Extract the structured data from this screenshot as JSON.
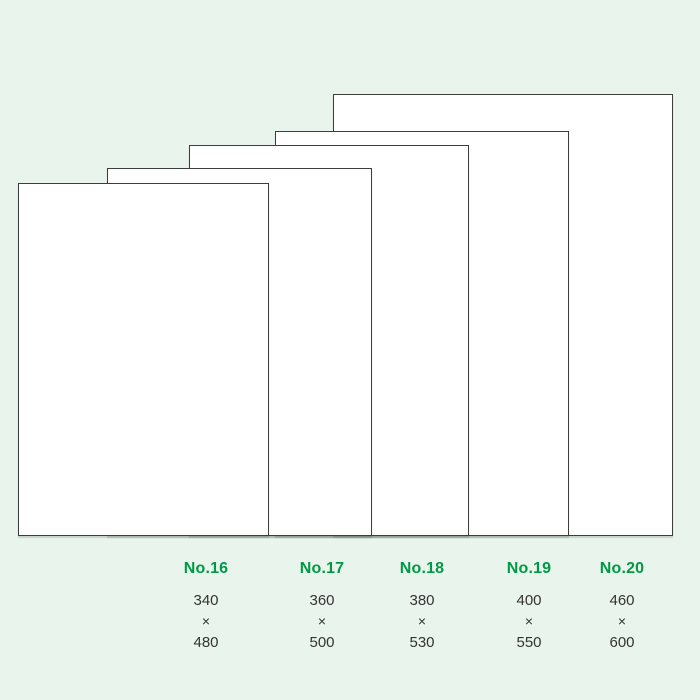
{
  "page": {
    "background_color": "#e9f4ec"
  },
  "diagram": {
    "accent_color": "#009946",
    "text_color": "#333333",
    "rect_fill": "#ffffff",
    "rect_border_color": "#3d3d3d",
    "sizes": [
      {
        "name": "No.16",
        "width": "340",
        "times": "×",
        "height": "480"
      },
      {
        "name": "No.17",
        "width": "360",
        "times": "×",
        "height": "500"
      },
      {
        "name": "No.18",
        "width": "380",
        "times": "×",
        "height": "530"
      },
      {
        "name": "No.19",
        "width": "400",
        "times": "×",
        "height": "550"
      },
      {
        "name": "No.20",
        "width": "460",
        "times": "×",
        "height": "600"
      }
    ]
  }
}
